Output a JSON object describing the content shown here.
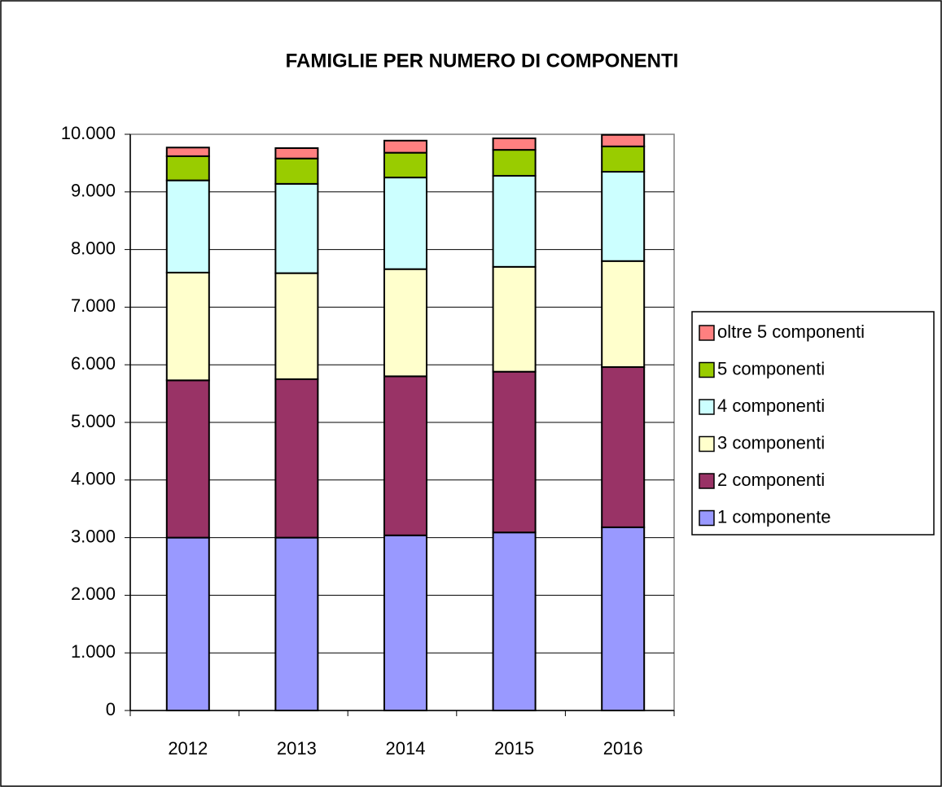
{
  "chart_data": {
    "type": "stacked_bar",
    "title": "FAMIGLIE PER NUMERO DI COMPONENTI",
    "categories": [
      "2012",
      "2013",
      "2014",
      "2015",
      "2016"
    ],
    "series": [
      {
        "name": "1 componente",
        "color": "#9999ff",
        "values": [
          3000,
          3000,
          3040,
          3090,
          3180
        ]
      },
      {
        "name": "2 componenti",
        "color": "#993366",
        "values": [
          2730,
          2750,
          2760,
          2790,
          2780
        ]
      },
      {
        "name": "3 componenti",
        "color": "#ffffcc",
        "values": [
          1870,
          1840,
          1860,
          1820,
          1840
        ]
      },
      {
        "name": "4 componenti",
        "color": "#ccffff",
        "values": [
          1600,
          1550,
          1590,
          1580,
          1550
        ]
      },
      {
        "name": "5 componenti",
        "color": "#99cc00",
        "values": [
          420,
          440,
          430,
          450,
          440
        ]
      },
      {
        "name": "oltre 5 componenti",
        "color": "#ff8080",
        "values": [
          150,
          180,
          210,
          200,
          200
        ]
      }
    ],
    "ylim": [
      0,
      10000
    ],
    "yticks": [
      0,
      {
        "value": 1000,
        "label": "1.000"
      },
      {
        "value": 2000,
        "label": "2.000"
      },
      {
        "value": 3000,
        "label": "3.000"
      },
      {
        "value": 4000,
        "label": "4.000"
      },
      {
        "value": 5000,
        "label": "5.000"
      },
      {
        "value": 6000,
        "label": "6.000"
      },
      {
        "value": 7000,
        "label": "7.000"
      },
      {
        "value": 8000,
        "label": "8.000"
      },
      {
        "value": 9000,
        "label": "9.000"
      },
      {
        "value": 10000,
        "label": "10.000"
      }
    ],
    "grid": true,
    "legend": "right"
  }
}
